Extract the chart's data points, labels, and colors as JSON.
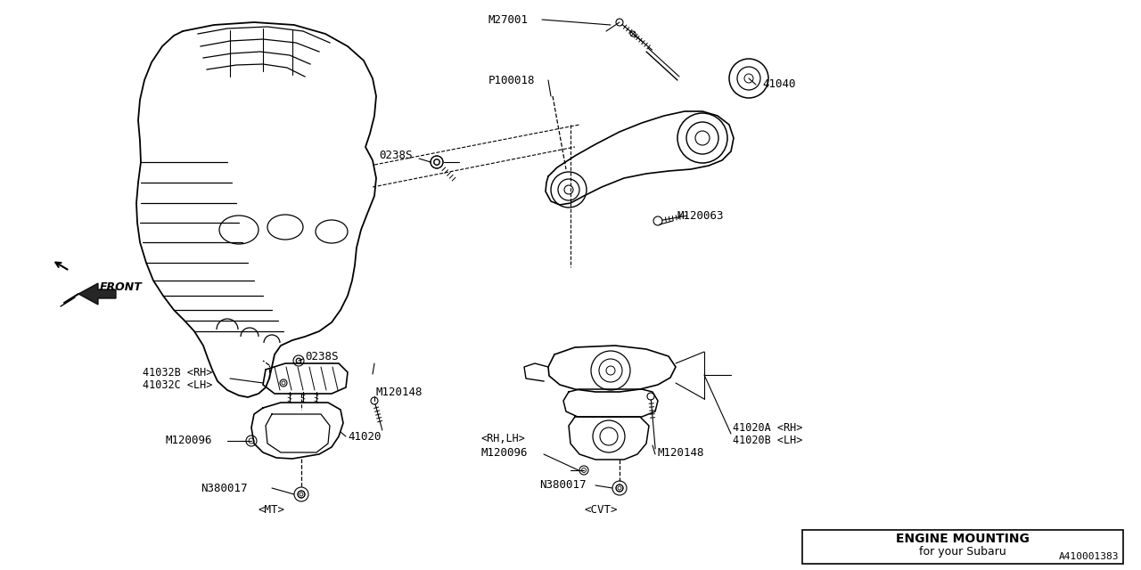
{
  "title": "ENGINE MOUNTING",
  "subtitle": "for your Subaru",
  "background_color": "#ffffff",
  "line_color": "#000000",
  "diagram_id": "A410001383",
  "figsize": [
    12.8,
    6.4
  ],
  "dpi": 100
}
